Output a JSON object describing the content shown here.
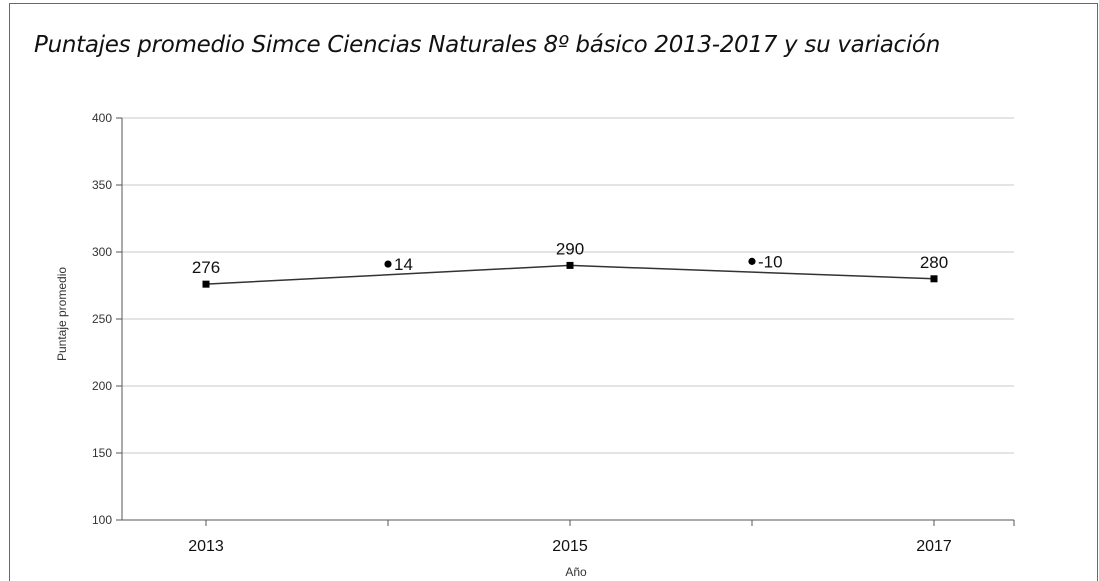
{
  "chart_data": {
    "type": "line",
    "title": "Puntajes promedio Simce Ciencias Naturales 8º básico 2013-2017 y su variación",
    "xlabel": "Año",
    "ylabel": "Puntaje promedio",
    "ylim": [
      100,
      400
    ],
    "yticks": [
      100,
      150,
      200,
      250,
      300,
      350,
      400
    ],
    "x_tick_labels": [
      "2013",
      "2015",
      "2017"
    ],
    "grid": true,
    "series": [
      {
        "points": [
          {
            "x": "2013",
            "y": 276,
            "label": "276"
          },
          {
            "x": "2015",
            "y": 290,
            "label": "290"
          },
          {
            "x": "2017",
            "y": 280,
            "label": "280"
          }
        ]
      }
    ],
    "variations": [
      {
        "between": [
          "2013",
          "2015"
        ],
        "value": 14,
        "label": "14",
        "plotted_y": 291
      },
      {
        "between": [
          "2015",
          "2017"
        ],
        "value": -10,
        "label": "-10",
        "plotted_y": 293
      }
    ]
  }
}
